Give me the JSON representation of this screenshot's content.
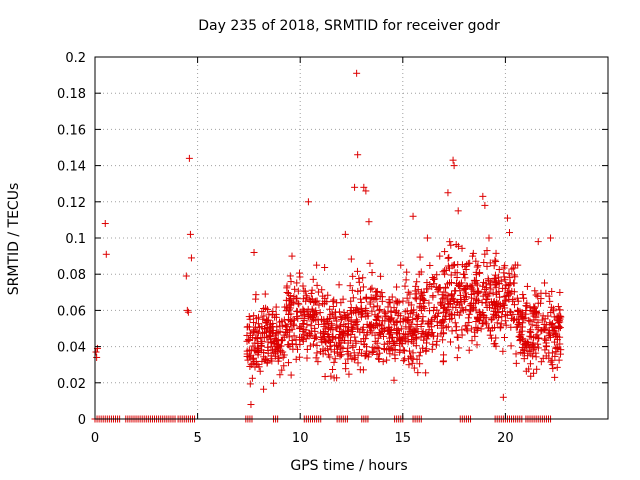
{
  "chart_data": {
    "type": "scatter",
    "title": "Day 235 of 2018, SRMTID for receiver godr",
    "xlabel": "GPS time / hours",
    "ylabel": "SRMTID / TECUs",
    "xlim": [
      0,
      25
    ],
    "ylim": [
      0,
      0.2
    ],
    "xticks": [
      0,
      5,
      10,
      15,
      20
    ],
    "xtick_labels": [
      "0",
      "5",
      "10",
      "15",
      "20"
    ],
    "yticks": [
      0,
      0.02,
      0.04,
      0.06,
      0.08,
      0.1,
      0.12,
      0.14,
      0.16,
      0.18,
      0.2
    ],
    "ytick_labels": [
      "0",
      "0.02",
      "0.04",
      "0.06",
      "0.08",
      "0.1",
      "0.12",
      "0.14",
      "0.16",
      "0.18",
      "0.2"
    ],
    "grid": true,
    "marker": "plus",
    "series": [
      {
        "name": "SRMTID",
        "color": "#dd0000",
        "points": [
          [
            0.05,
            0.037
          ],
          [
            0.08,
            0.034
          ],
          [
            0.12,
            0.039
          ],
          [
            0.5,
            0.108
          ],
          [
            0.55,
            0.091
          ],
          [
            4.45,
            0.079
          ],
          [
            4.5,
            0.06
          ],
          [
            4.55,
            0.059
          ],
          [
            4.6,
            0.144
          ],
          [
            4.65,
            0.102
          ],
          [
            4.7,
            0.089
          ],
          [
            7.6,
            0.008
          ],
          [
            7.75,
            0.092
          ],
          [
            8.3,
            0.033
          ],
          [
            9.1,
            0.027
          ],
          [
            9.5,
            0.04
          ],
          [
            9.6,
            0.09
          ],
          [
            10.4,
            0.12
          ],
          [
            10.8,
            0.085
          ],
          [
            11.2,
            0.065
          ],
          [
            11.9,
            0.042
          ],
          [
            12.2,
            0.102
          ],
          [
            12.65,
            0.128
          ],
          [
            12.75,
            0.191
          ],
          [
            12.8,
            0.146
          ],
          [
            13.1,
            0.128
          ],
          [
            13.2,
            0.126
          ],
          [
            13.35,
            0.109
          ],
          [
            13.4,
            0.086
          ],
          [
            13.7,
            0.055
          ],
          [
            14.0,
            0.065
          ],
          [
            14.5,
            0.045
          ],
          [
            14.9,
            0.085
          ],
          [
            15.3,
            0.03
          ],
          [
            15.5,
            0.112
          ],
          [
            15.8,
            0.08
          ],
          [
            16.2,
            0.1
          ],
          [
            16.5,
            0.06
          ],
          [
            16.8,
            0.09
          ],
          [
            17.2,
            0.125
          ],
          [
            17.45,
            0.143
          ],
          [
            17.5,
            0.14
          ],
          [
            17.7,
            0.115
          ],
          [
            18.0,
            0.065
          ],
          [
            18.4,
            0.09
          ],
          [
            18.9,
            0.123
          ],
          [
            19.0,
            0.118
          ],
          [
            19.2,
            0.1
          ],
          [
            19.5,
            0.063
          ],
          [
            19.9,
            0.012
          ],
          [
            20.1,
            0.111
          ],
          [
            20.2,
            0.103
          ],
          [
            20.6,
            0.085
          ],
          [
            21.3,
            0.052
          ],
          [
            21.6,
            0.098
          ],
          [
            22.0,
            0.04
          ],
          [
            22.2,
            0.1
          ],
          [
            22.4,
            0.023
          ],
          [
            22.6,
            0.05
          ]
        ],
        "dense_clusters": [
          {
            "x_from": 7.4,
            "x_to": 9.3,
            "y_min": 0.012,
            "y_max": 0.075,
            "center": 0.034
          },
          {
            "x_from": 9.3,
            "x_to": 11.2,
            "y_min": 0.02,
            "y_max": 0.09,
            "center": 0.05
          },
          {
            "x_from": 11.2,
            "x_to": 12.4,
            "y_min": 0.015,
            "y_max": 0.08,
            "center": 0.045
          },
          {
            "x_from": 12.4,
            "x_to": 14.0,
            "y_min": 0.02,
            "y_max": 0.092,
            "center": 0.06
          },
          {
            "x_from": 14.0,
            "x_to": 15.6,
            "y_min": 0.015,
            "y_max": 0.085,
            "center": 0.045
          },
          {
            "x_from": 15.6,
            "x_to": 17.0,
            "y_min": 0.015,
            "y_max": 0.095,
            "center": 0.052
          },
          {
            "x_from": 17.0,
            "x_to": 18.6,
            "y_min": 0.03,
            "y_max": 0.105,
            "center": 0.065
          },
          {
            "x_from": 18.6,
            "x_to": 20.5,
            "y_min": 0.03,
            "y_max": 0.1,
            "center": 0.06
          },
          {
            "x_from": 20.5,
            "x_to": 22.7,
            "y_min": 0.015,
            "y_max": 0.085,
            "center": 0.05
          }
        ],
        "zero_segments": [
          [
            0.0,
            1.25
          ],
          [
            1.5,
            2.9
          ],
          [
            3.0,
            3.9
          ],
          [
            4.05,
            4.85
          ],
          [
            7.35,
            7.65
          ],
          [
            8.7,
            8.95
          ],
          [
            10.2,
            11.0
          ],
          [
            11.8,
            12.3
          ],
          [
            13.0,
            13.3
          ],
          [
            14.6,
            15.05
          ],
          [
            15.5,
            15.9
          ],
          [
            17.8,
            18.3
          ],
          [
            19.5,
            20.8
          ],
          [
            21.0,
            22.2
          ]
        ]
      }
    ]
  }
}
